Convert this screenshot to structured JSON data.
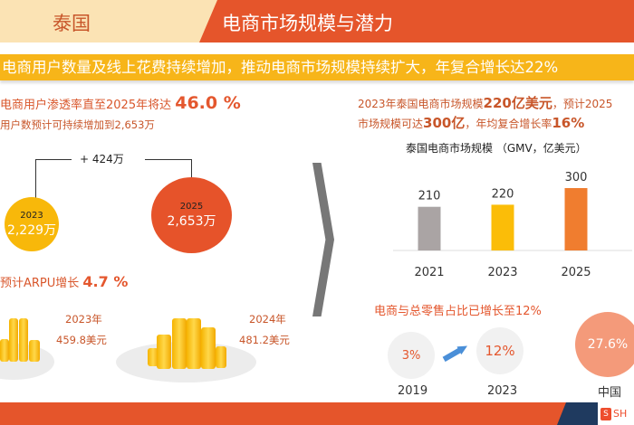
{
  "header": {
    "country": "泰国",
    "title": "电商市场规模与潜力"
  },
  "banner": "电商用户数量及线上花费持续增加，推动电商市场规模持续扩大，年复合增长达22%",
  "left": {
    "penetration_text": "电商用户渗透率直至2025年将达",
    "penetration_value": "46.0 %",
    "users_text": "用户数预计可持续增加到2,653万",
    "delta": "+ 424万",
    "users_2023": {
      "year": "2023",
      "value": "2,229万"
    },
    "users_2025": {
      "year": "2025",
      "value": "2,653万"
    },
    "arpu_text": "预计ARPU增长",
    "arpu_value": "4.7 %",
    "arpu_2023": {
      "year": "2023年",
      "value": "459.8美元"
    },
    "arpu_2024": {
      "year": "2024年",
      "value": "481.2美元"
    }
  },
  "right": {
    "market_line1_a": "2023年泰国电商市场规模",
    "market_line1_b": "220亿美元",
    "market_line1_c": "，预计2025",
    "market_line2_a": "市场规模可达",
    "market_line2_b": "300亿",
    "market_line2_c": "，年均复合增长率",
    "market_line2_d": "16%",
    "share_title": "电商与总零售占比已增长至12%",
    "shares": [
      {
        "value": "3%",
        "label": "2019"
      },
      {
        "value": "12%",
        "label": "2023"
      },
      {
        "value": "27.6%",
        "label": "中国"
      }
    ]
  },
  "chart_data": {
    "type": "bar",
    "title": "泰国电商市场规模 （GMV，亿美元）",
    "categories": [
      "2021",
      "2023",
      "2025"
    ],
    "values": [
      210,
      220,
      300
    ],
    "value_labels": [
      "210",
      "220",
      "300"
    ],
    "colors": [
      "#aaa4a4",
      "#fbbd08",
      "#f07d2f"
    ],
    "ylim": [
      0,
      300
    ],
    "grid": false
  },
  "footer": {
    "logo": "SHOPEE"
  },
  "colors": {
    "accent": "#e5552b",
    "yellow": "#f7b519",
    "peach": "#fbe3b4",
    "navy": "#1f3a5f"
  }
}
